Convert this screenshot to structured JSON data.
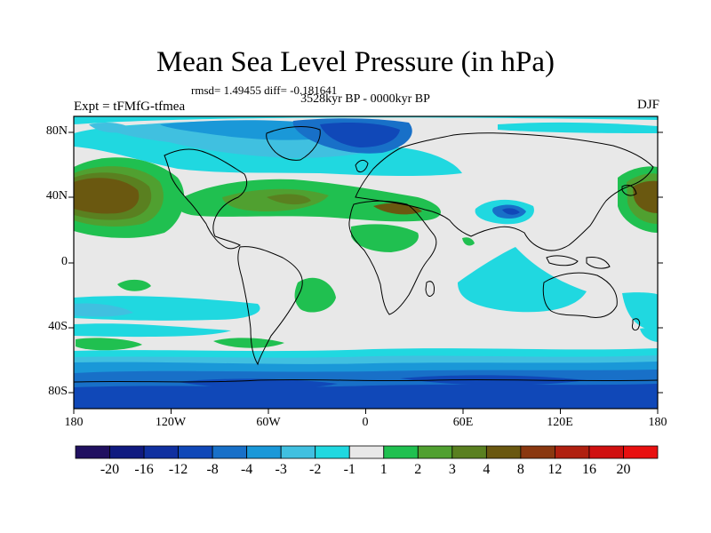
{
  "title": "Mean Sea Level Pressure (in hPa)",
  "stats": "rmsd= 1.49455 diff= -0.181641",
  "period": "3528kyr BP - 0000kyr BP",
  "experiment": "Expt = tFMfG-tfmea",
  "season": "DJF",
  "lat_labels": [
    "80N",
    "40N",
    "0",
    "40S",
    "80S"
  ],
  "lon_labels": [
    "180",
    "120W",
    "60W",
    "0",
    "60E",
    "120E",
    "180"
  ],
  "colorbar": {
    "labels": [
      "-20",
      "-16",
      "-12",
      "-8",
      "-4",
      "-3",
      "-2",
      "-1",
      "1",
      "2",
      "3",
      "4",
      "8",
      "12",
      "16",
      "20"
    ],
    "colors": [
      "#201060",
      "#101a80",
      "#1030a0",
      "#1048b8",
      "#1870c8",
      "#1a98d8",
      "#40c0e0",
      "#20d8e0",
      "#e8e8e8",
      "#20c050",
      "#50a030",
      "#5a8020",
      "#6a5810",
      "#8a3810",
      "#b02010",
      "#d01010",
      "#e81010"
    ]
  }
}
